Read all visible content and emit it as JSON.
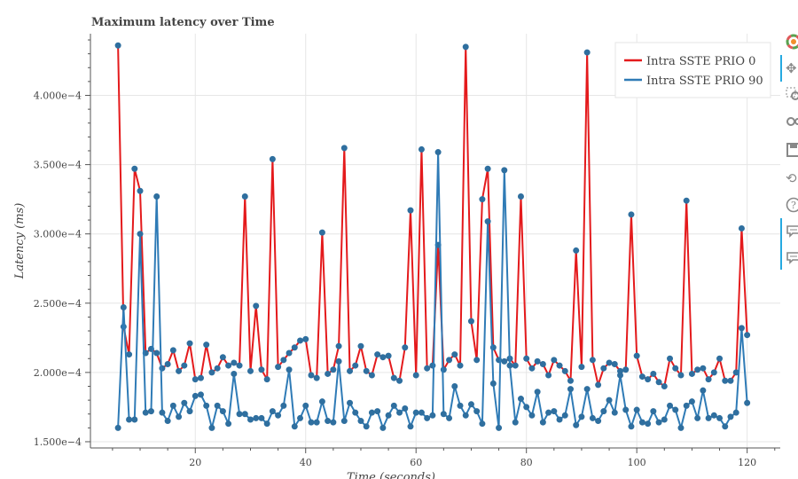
{
  "chart_data": {
    "type": "line",
    "title": "Maximum latency over Time",
    "xlabel": "Time (seconds)",
    "ylabel": "Latency (ms)",
    "xlim": [
      1,
      126
    ],
    "ylim": [
      0.0001455,
      0.0004445
    ],
    "xticks": [
      20,
      40,
      60,
      80,
      100,
      120
    ],
    "xtick_labels": [
      "20",
      "40",
      "60",
      "80",
      "100",
      "120"
    ],
    "yticks": [
      0.00015,
      0.0002,
      0.00025,
      0.0003,
      0.00035,
      0.0004
    ],
    "ytick_labels": [
      "1.500e−4",
      "2.000e−4",
      "2.500e−4",
      "3.000e−4",
      "3.500e−4",
      "4.000e−4"
    ],
    "grid": true,
    "legend_position": "top-right",
    "x": [
      6,
      7,
      8,
      9,
      10,
      11,
      12,
      13,
      14,
      15,
      16,
      17,
      18,
      19,
      20,
      21,
      22,
      23,
      24,
      25,
      26,
      27,
      28,
      29,
      30,
      31,
      32,
      33,
      34,
      35,
      36,
      37,
      38,
      39,
      40,
      41,
      42,
      43,
      44,
      45,
      46,
      47,
      48,
      49,
      50,
      51,
      52,
      53,
      54,
      55,
      56,
      57,
      58,
      59,
      60,
      61,
      62,
      63,
      64,
      65,
      66,
      67,
      68,
      69,
      70,
      71,
      72,
      73,
      74,
      75,
      76,
      77,
      78,
      79,
      80,
      81,
      82,
      83,
      84,
      85,
      86,
      87,
      88,
      89,
      90,
      91,
      92,
      93,
      94,
      95,
      96,
      97,
      98,
      99,
      100,
      101,
      102,
      103,
      104,
      105,
      106,
      107,
      108,
      109,
      110,
      111,
      112,
      113,
      114,
      115,
      116,
      117,
      118,
      119,
      120
    ],
    "series": [
      {
        "name": "Intra SSTE PRIO 0",
        "color": "#e41a1c",
        "values": [
          0.000436,
          0.000233,
          0.000213,
          0.000347,
          0.000331,
          0.000214,
          0.000217,
          0.000214,
          0.000203,
          0.000206,
          0.000216,
          0.000201,
          0.000205,
          0.000221,
          0.000195,
          0.000196,
          0.00022,
          0.0002,
          0.000203,
          0.000211,
          0.000205,
          0.000207,
          0.000205,
          0.000327,
          0.000201,
          0.000248,
          0.000202,
          0.000195,
          0.000354,
          0.000204,
          0.000209,
          0.000214,
          0.000218,
          0.000223,
          0.000224,
          0.000198,
          0.000196,
          0.000301,
          0.000199,
          0.000202,
          0.000219,
          0.000362,
          0.000201,
          0.000205,
          0.000219,
          0.000201,
          0.000198,
          0.000213,
          0.000211,
          0.000212,
          0.000196,
          0.000194,
          0.000218,
          0.000317,
          0.000198,
          0.000361,
          0.000203,
          0.000205,
          0.000292,
          0.000202,
          0.000209,
          0.000213,
          0.000205,
          0.000435,
          0.000237,
          0.000209,
          0.000325,
          0.000347,
          0.000218,
          0.000209,
          0.000208,
          0.00021,
          0.000205,
          0.000327,
          0.00021,
          0.000203,
          0.000208,
          0.000206,
          0.000198,
          0.000209,
          0.000205,
          0.000201,
          0.000194,
          0.000288,
          0.000204,
          0.000431,
          0.000209,
          0.000191,
          0.000203,
          0.000207,
          0.000206,
          0.000201,
          0.000202,
          0.000314,
          0.000212,
          0.000197,
          0.000195,
          0.000199,
          0.000193,
          0.00019,
          0.00021,
          0.000203,
          0.000198,
          0.000324,
          0.000199,
          0.000202,
          0.000203,
          0.000195,
          0.0002,
          0.00021,
          0.000194,
          0.000194,
          0.0002,
          0.000304,
          0.000227
        ]
      },
      {
        "name": "Intra SSTE PRIO 90",
        "color": "#2f7bb6",
        "values": [
          0.00016,
          0.000247,
          0.000166,
          0.000166,
          0.0003,
          0.000171,
          0.000172,
          0.000327,
          0.000171,
          0.000165,
          0.000176,
          0.000168,
          0.000178,
          0.000172,
          0.000183,
          0.000184,
          0.000176,
          0.00016,
          0.000176,
          0.000172,
          0.000163,
          0.000199,
          0.00017,
          0.00017,
          0.000166,
          0.000167,
          0.000167,
          0.000163,
          0.000172,
          0.000169,
          0.000176,
          0.000202,
          0.000161,
          0.000167,
          0.000176,
          0.000164,
          0.000164,
          0.000179,
          0.000165,
          0.000164,
          0.000208,
          0.000165,
          0.000178,
          0.000171,
          0.000165,
          0.000161,
          0.000171,
          0.000172,
          0.00016,
          0.000169,
          0.000176,
          0.000171,
          0.000174,
          0.000161,
          0.000171,
          0.000171,
          0.000167,
          0.000169,
          0.000359,
          0.00017,
          0.000167,
          0.00019,
          0.000176,
          0.000169,
          0.000177,
          0.000172,
          0.000163,
          0.000309,
          0.000192,
          0.00016,
          0.000346,
          0.000205,
          0.000164,
          0.000181,
          0.000175,
          0.000169,
          0.000186,
          0.000164,
          0.000171,
          0.000172,
          0.000166,
          0.000169,
          0.000188,
          0.000162,
          0.000168,
          0.000188,
          0.000167,
          0.000165,
          0.000172,
          0.00018,
          0.000171,
          0.000198,
          0.000173,
          0.000161,
          0.000173,
          0.000164,
          0.000163,
          0.000172,
          0.000164,
          0.000166,
          0.000176,
          0.000173,
          0.00016,
          0.000176,
          0.000179,
          0.000167,
          0.000187,
          0.000167,
          0.000169,
          0.000167,
          0.000161,
          0.000168,
          0.000171,
          0.000232,
          0.000178
        ]
      }
    ]
  },
  "toolbar": {
    "items": [
      "bokeh-logo-icon",
      "pan-icon",
      "box-zoom-icon",
      "wheel-zoom-icon",
      "save-icon",
      "reset-icon",
      "help-icon",
      "hover-icon-1",
      "hover-icon-2"
    ]
  }
}
